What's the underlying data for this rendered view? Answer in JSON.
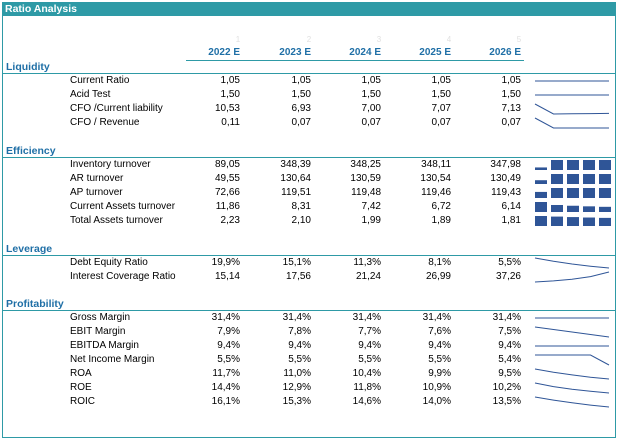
{
  "title": "Ratio Analysis",
  "col_numbers": [
    "1",
    "2",
    "3",
    "4",
    "5"
  ],
  "years": [
    "2022 E",
    "2023 E",
    "2024 E",
    "2025 E",
    "2026 E"
  ],
  "colors": {
    "accent": "#2e9aa6",
    "header_text": "#1f6fa6",
    "spark": "#2f5597"
  },
  "sections": [
    {
      "name": "Liquidity",
      "rows": [
        {
          "label": "Current Ratio",
          "values": [
            "1,05",
            "1,05",
            "1,05",
            "1,05",
            "1,05"
          ],
          "spark": "line",
          "points": [
            1.05,
            1.05,
            1.05,
            1.05,
            1.05
          ]
        },
        {
          "label": "Acid Test",
          "values": [
            "1,50",
            "1,50",
            "1,50",
            "1,50",
            "1,50"
          ],
          "spark": "line",
          "points": [
            1.5,
            1.5,
            1.5,
            1.5,
            1.5
          ]
        },
        {
          "label": "CFO /Current liability",
          "values": [
            "10,53",
            "6,93",
            "7,00",
            "7,07",
            "7,13"
          ],
          "spark": "line",
          "points": [
            10.53,
            6.93,
            7.0,
            7.07,
            7.13
          ]
        },
        {
          "label": "CFO / Revenue",
          "values": [
            "0,11",
            "0,07",
            "0,07",
            "0,07",
            "0,07"
          ],
          "spark": "line",
          "points": [
            0.11,
            0.07,
            0.07,
            0.07,
            0.07
          ]
        }
      ]
    },
    {
      "name": "Efficiency",
      "rows": [
        {
          "label": "Inventory turnover",
          "values": [
            "89,05",
            "348,39",
            "348,25",
            "348,11",
            "347,98"
          ],
          "spark": "bars",
          "points": [
            89.05,
            348.39,
            348.25,
            348.11,
            347.98
          ]
        },
        {
          "label": "AR turnover",
          "values": [
            "49,55",
            "130,64",
            "130,59",
            "130,54",
            "130,49"
          ],
          "spark": "bars",
          "points": [
            49.55,
            130.64,
            130.59,
            130.54,
            130.49
          ]
        },
        {
          "label": "AP turnover",
          "values": [
            "72,66",
            "119,51",
            "119,48",
            "119,46",
            "119,43"
          ],
          "spark": "bars",
          "points": [
            72.66,
            119.51,
            119.48,
            119.46,
            119.43
          ]
        },
        {
          "label": "Current Assets turnover",
          "values": [
            "11,86",
            "8,31",
            "7,42",
            "6,72",
            "6,14"
          ],
          "spark": "bars",
          "points": [
            11.86,
            8.31,
            7.42,
            6.72,
            6.14
          ]
        },
        {
          "label": "Total Assets turnover",
          "values": [
            "2,23",
            "2,10",
            "1,99",
            "1,89",
            "1,81"
          ],
          "spark": "bars",
          "points": [
            2.23,
            2.1,
            1.99,
            1.89,
            1.81
          ]
        }
      ]
    },
    {
      "name": "Leverage",
      "rows": [
        {
          "label": "Debt Equity Ratio",
          "values": [
            "19,9%",
            "15,1%",
            "11,3%",
            "8,1%",
            "5,5%"
          ],
          "spark": "line",
          "points": [
            19.9,
            15.1,
            11.3,
            8.1,
            5.5
          ]
        },
        {
          "label": "Interest Coverage Ratio",
          "values": [
            "15,14",
            "17,56",
            "21,24",
            "26,99",
            "37,26"
          ],
          "spark": "line",
          "points": [
            15.14,
            17.56,
            21.24,
            26.99,
            37.26
          ]
        }
      ]
    },
    {
      "name": "Profitability",
      "rows": [
        {
          "label": "Gross Margin",
          "values": [
            "31,4%",
            "31,4%",
            "31,4%",
            "31,4%",
            "31,4%"
          ],
          "spark": "line",
          "points": [
            31.4,
            31.4,
            31.4,
            31.4,
            31.4
          ]
        },
        {
          "label": "EBIT Margin",
          "values": [
            "7,9%",
            "7,8%",
            "7,7%",
            "7,6%",
            "7,5%"
          ],
          "spark": "line",
          "points": [
            7.9,
            7.8,
            7.7,
            7.6,
            7.5
          ]
        },
        {
          "label": "EBITDA Margin",
          "values": [
            "9,4%",
            "9,4%",
            "9,4%",
            "9,4%",
            "9,4%"
          ],
          "spark": "line",
          "points": [
            9.4,
            9.4,
            9.4,
            9.4,
            9.4
          ]
        },
        {
          "label": "Net Income Margin",
          "values": [
            "5,5%",
            "5,5%",
            "5,5%",
            "5,5%",
            "5,4%"
          ],
          "spark": "line",
          "points": [
            5.5,
            5.5,
            5.5,
            5.5,
            5.4
          ]
        },
        {
          "label": "ROA",
          "values": [
            "11,7%",
            "11,0%",
            "10,4%",
            "9,9%",
            "9,5%"
          ],
          "spark": "line",
          "points": [
            11.7,
            11.0,
            10.4,
            9.9,
            9.5
          ]
        },
        {
          "label": "ROE",
          "values": [
            "14,4%",
            "12,9%",
            "11,8%",
            "10,9%",
            "10,2%"
          ],
          "spark": "line",
          "points": [
            14.4,
            12.9,
            11.8,
            10.9,
            10.2
          ]
        },
        {
          "label": "ROIC",
          "values": [
            "16,1%",
            "15,3%",
            "14,6%",
            "14,0%",
            "13,5%"
          ],
          "spark": "line",
          "points": [
            16.1,
            15.3,
            14.6,
            14.0,
            13.5
          ]
        }
      ]
    }
  ]
}
